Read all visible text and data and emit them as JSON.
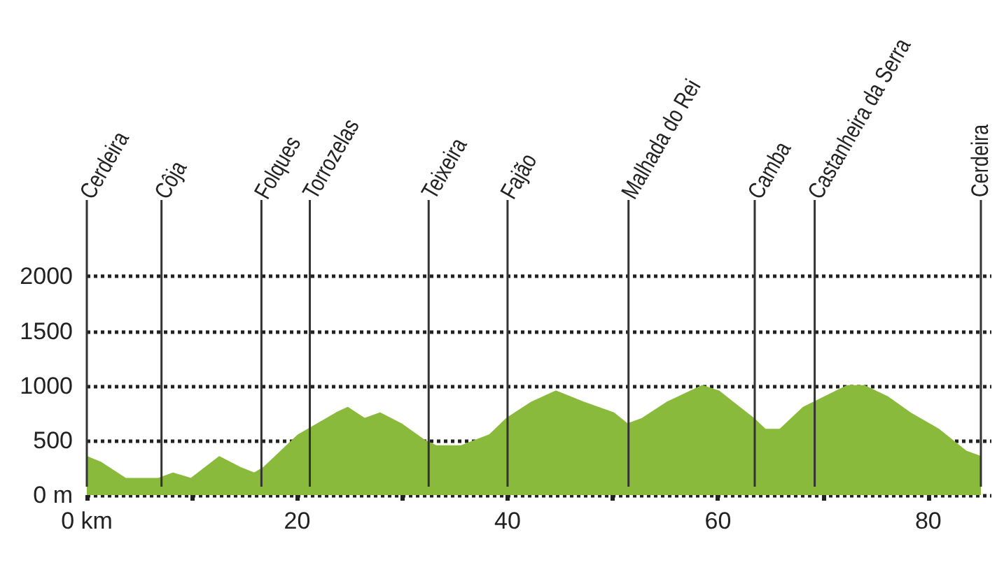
{
  "chart_data": {
    "type": "area",
    "x": [
      0,
      1.3,
      3.7,
      6.8,
      8.2,
      9.9,
      12.6,
      14.6,
      15.9,
      16.8,
      20.1,
      23.7,
      24.8,
      26.4,
      27.9,
      29.9,
      32.1,
      33.2,
      35.6,
      38.3,
      39.9,
      42.3,
      44.6,
      47.2,
      50.1,
      51.4,
      52.8,
      55.2,
      58.5,
      60.1,
      61.4,
      63.4,
      64.5,
      65.9,
      68.1,
      72.3,
      73.9,
      76.1,
      78.3,
      81.0,
      83.6,
      85.0
    ],
    "series": [
      {
        "color": "#8aba3c",
        "values": [
          350,
          300,
          150,
          150,
          200,
          150,
          350,
          250,
          200,
          250,
          550,
          750,
          800,
          700,
          750,
          650,
          500,
          450,
          450,
          550,
          700,
          850,
          950,
          850,
          750,
          650,
          700,
          850,
          1000,
          950,
          850,
          700,
          600,
          600,
          800,
          1000,
          1000,
          900,
          750,
          600,
          400,
          350
        ]
      }
    ],
    "xlim": [
      0,
      86
    ],
    "xticks": [
      {
        "value": 0,
        "label": "0 km"
      },
      {
        "value": 10,
        "label": null
      },
      20,
      {
        "value": 30,
        "label": null
      },
      40,
      {
        "value": 50,
        "label": null
      },
      60,
      {
        "value": 70,
        "label": null
      },
      80
    ],
    "ylim": [
      0,
      2700
    ],
    "yticks": [
      {
        "value": 0,
        "label": "0 m"
      },
      500,
      1000,
      1500,
      2000
    ],
    "grid": "y",
    "marker": "none",
    "ref_lines": [
      {
        "axis": "x",
        "value": 0,
        "label": "Cerdeira",
        "color": "#333333"
      },
      {
        "axis": "x",
        "value": 7.1,
        "label": "Côja",
        "color": "#333333"
      },
      {
        "axis": "x",
        "value": 16.6,
        "label": "Folques",
        "color": "#333333"
      },
      {
        "axis": "x",
        "value": 21.2,
        "label": "Torrozelas",
        "color": "#333333"
      },
      {
        "axis": "x",
        "value": 32.5,
        "label": "Teixeira",
        "color": "#333333"
      },
      {
        "axis": "x",
        "value": 40.0,
        "label": "Fajão",
        "color": "#333333"
      },
      {
        "axis": "x",
        "value": 51.5,
        "label": "Malhada do Rei",
        "color": "#333333"
      },
      {
        "axis": "x",
        "value": 63.5,
        "label": "Camba",
        "color": "#333333"
      },
      {
        "axis": "x",
        "value": 69.2,
        "label": "Castanheira da Serra",
        "color": "#333333"
      },
      {
        "axis": "x",
        "value": 85.0,
        "label": "Cerdeira",
        "color": "#333333"
      }
    ]
  }
}
